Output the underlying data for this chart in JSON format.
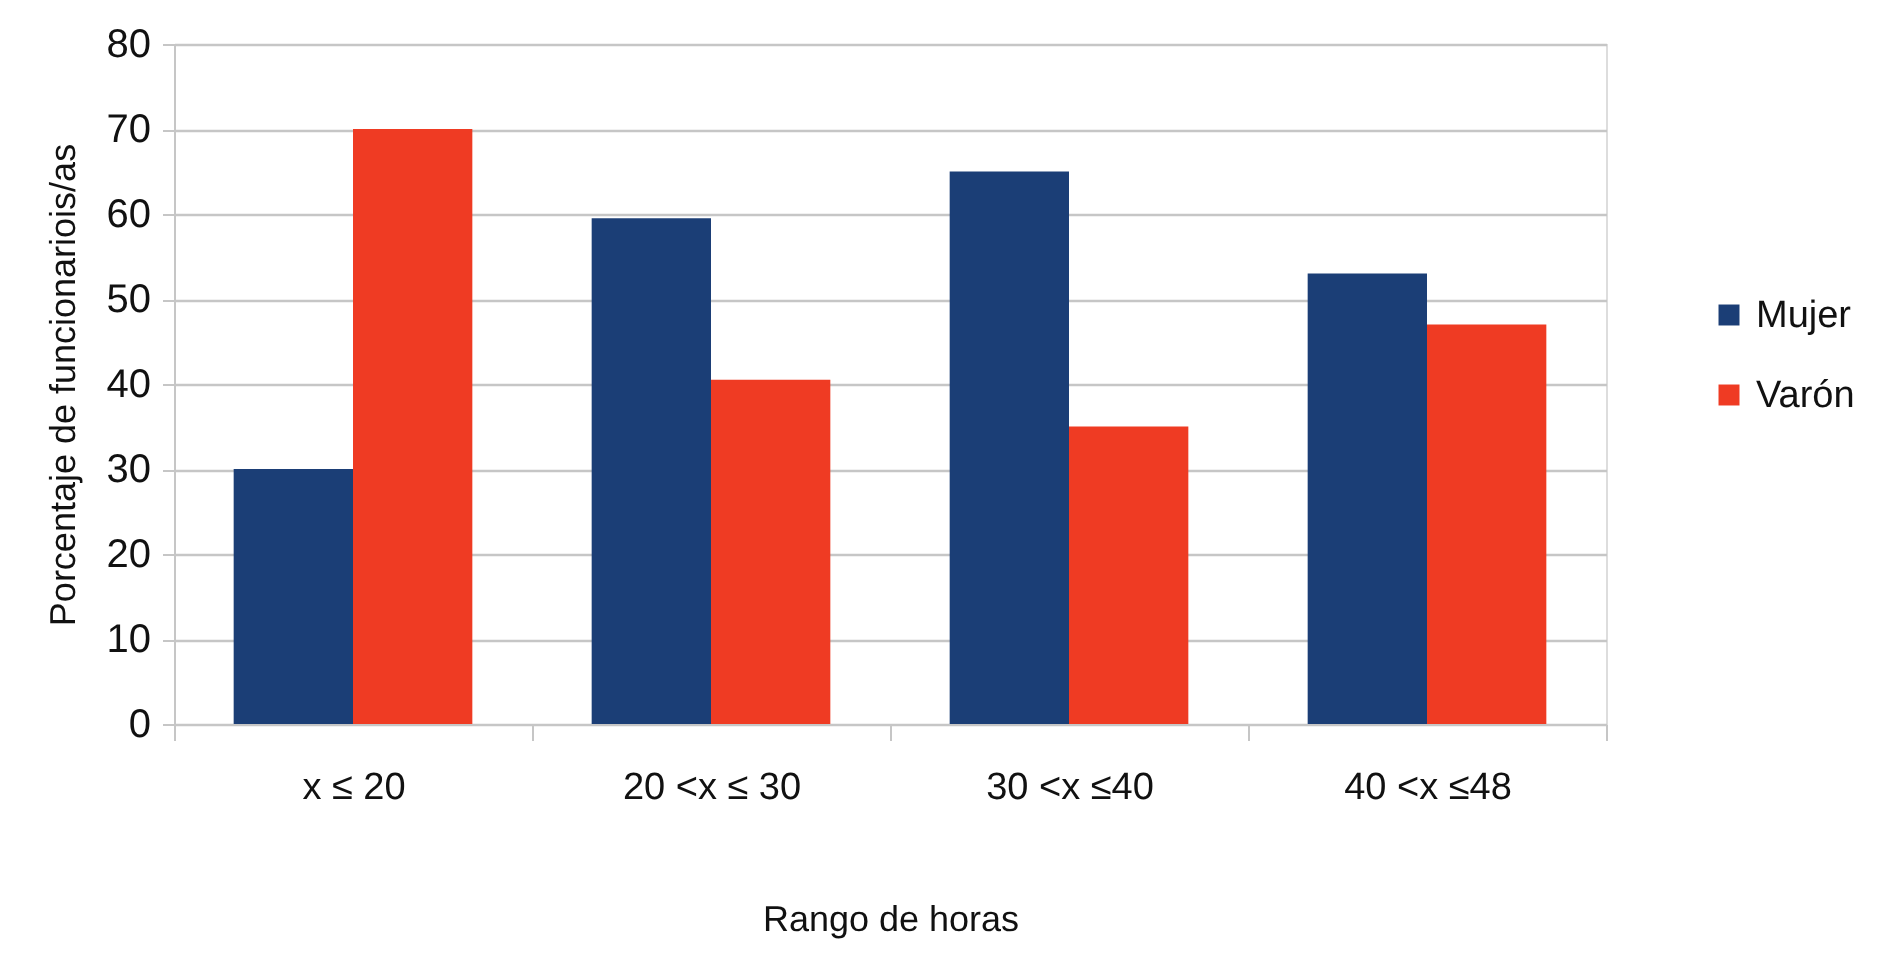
{
  "chart_data": {
    "type": "bar",
    "xlabel": "Rango de horas",
    "ylabel": "Porcentaje de funcionariois/as",
    "categories": [
      "x ≤ 20",
      "20 <x ≤ 30",
      "30 <x ≤40",
      "40 <x ≤48"
    ],
    "series": [
      {
        "name": "Mujer",
        "color": "#1b3e76",
        "values": [
          30,
          59.5,
          65,
          53
        ]
      },
      {
        "name": "Varón",
        "color": "#ef3b23",
        "values": [
          70,
          40.5,
          35,
          47
        ]
      }
    ],
    "ylim": [
      0,
      80
    ],
    "yticks": [
      0,
      10,
      20,
      30,
      40,
      50,
      60,
      70,
      80
    ],
    "grid": "y",
    "legend": "right"
  }
}
